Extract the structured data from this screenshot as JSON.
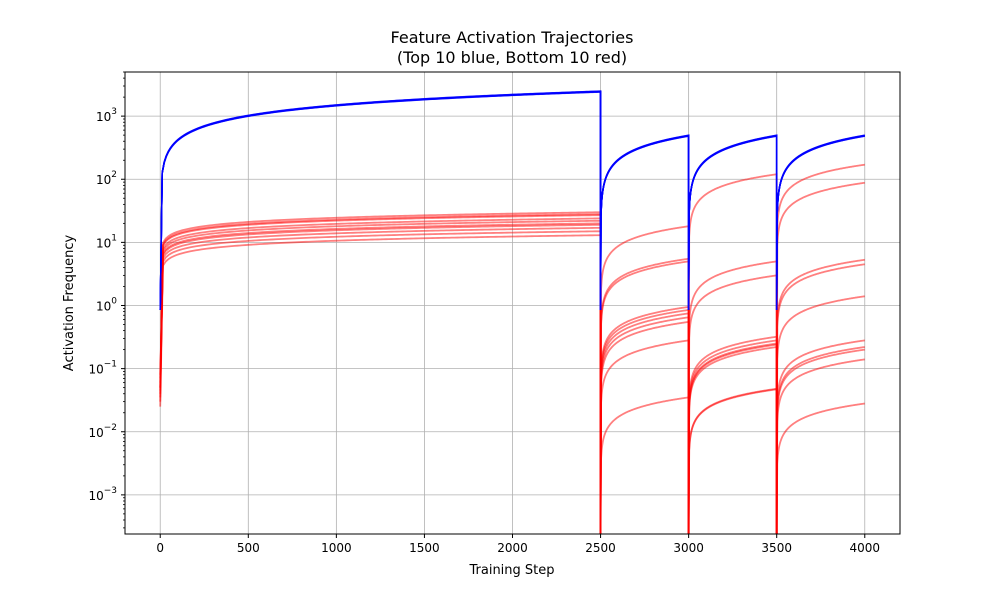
{
  "chart_data": {
    "type": "line",
    "title": "Feature Activation Trajectories",
    "subtitle": "(Top 10 blue, Bottom 10 red)",
    "xlabel": "Training Step",
    "ylabel": "Activation Frequency",
    "xlim": [
      -200,
      4200
    ],
    "ylim": [
      0.00024,
      5000
    ],
    "y_scale": "log",
    "grid": true,
    "x_ticks": [
      "0",
      "500",
      "1000",
      "1500",
      "2000",
      "2500",
      "3000",
      "3500",
      "4000"
    ],
    "x_tick_values": [
      0,
      500,
      1000,
      1500,
      2000,
      2500,
      3000,
      3500,
      4000
    ],
    "y_ticks": [
      "10^-3",
      "10^-2",
      "10^-1",
      "10^0",
      "10^1",
      "10^2",
      "10^3"
    ],
    "y_tick_exponents": [
      -3,
      -2,
      -1,
      0,
      1,
      2,
      3
    ],
    "colors": {
      "top": "#0000ff",
      "bottom": "#ff0000"
    },
    "top_group": {
      "label": "Top 10",
      "segments": [
        {
          "x_start": 0,
          "x_end": 2500,
          "y_start": 0.85,
          "y_end": 2450
        },
        {
          "x_start": 2500,
          "x_end": 3000,
          "y_start": 0.85,
          "y_end": 490
        },
        {
          "x_start": 3000,
          "x_end": 3500,
          "y_start": 0.85,
          "y_end": 490
        },
        {
          "x_start": 3500,
          "x_end": 4000,
          "y_start": 0.85,
          "y_end": 490
        }
      ]
    },
    "bottom_group": {
      "label": "Bottom 10",
      "series": [
        {
          "ends": [
            30,
            5.5,
            5.0,
            5.3
          ],
          "starts": [
            0.035,
            0.0008,
            0.0006,
            0.0004
          ]
        },
        {
          "ends": [
            27,
            18,
            120,
            4.5
          ],
          "starts": [
            0.03,
            0.001,
            0.0008,
            0.0006
          ]
        },
        {
          "ends": [
            24,
            5.0,
            3.0,
            170
          ],
          "starts": [
            0.04,
            0.0009,
            0.0007,
            0.0005
          ]
        },
        {
          "ends": [
            22,
            0.95,
            0.32,
            88
          ],
          "starts": [
            0.05,
            0.0006,
            0.0005,
            0.0004
          ]
        },
        {
          "ends": [
            20,
            0.85,
            0.28,
            1.4
          ],
          "starts": [
            0.045,
            0.0007,
            0.0006,
            0.0005
          ]
        },
        {
          "ends": [
            19,
            0.75,
            0.24,
            0.28
          ],
          "starts": [
            0.06,
            0.0005,
            0.0004,
            0.0004
          ]
        },
        {
          "ends": [
            17,
            0.65,
            0.22,
            0.22
          ],
          "starts": [
            0.07,
            0.0004,
            0.0004,
            0.0003
          ]
        },
        {
          "ends": [
            15,
            0.55,
            0.25,
            0.2
          ],
          "starts": [
            0.08,
            0.0005,
            0.0004,
            0.0003
          ]
        },
        {
          "ends": [
            13,
            0.28,
            0.048,
            0.14
          ],
          "starts": [
            0.025,
            0.0004,
            0.0003,
            0.0003
          ]
        },
        {
          "ends": [
            28,
            0.035,
            0.047,
            0.028
          ],
          "starts": [
            0.05,
            0.0003,
            0.0003,
            0.0003
          ]
        }
      ]
    }
  }
}
